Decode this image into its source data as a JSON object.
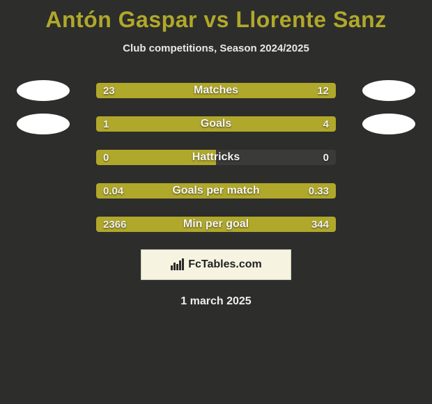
{
  "title": "Antón Gaspar vs Llorente Sanz",
  "title_color": "#b0a82b",
  "subtitle": "Club competitions, Season 2024/2025",
  "brand": "FcTables.com",
  "date": "1 march 2025",
  "bar_bg": "#3a3a38",
  "left_color": "#b0a82b",
  "right_color": "#b0a82b",
  "avatar_bg": "#ffffff",
  "stats": [
    {
      "label": "Matches",
      "left_val": "23",
      "right_val": "12",
      "left_pct": 66,
      "right_pct": 34,
      "show_avatars": true
    },
    {
      "label": "Goals",
      "left_val": "1",
      "right_val": "4",
      "left_pct": 20,
      "right_pct": 80,
      "show_avatars": true
    },
    {
      "label": "Hattricks",
      "left_val": "0",
      "right_val": "0",
      "left_pct": 50,
      "right_pct": 0,
      "show_avatars": false
    },
    {
      "label": "Goals per match",
      "left_val": "0.04",
      "right_val": "0.33",
      "left_pct": 11,
      "right_pct": 89,
      "show_avatars": false
    },
    {
      "label": "Min per goal",
      "left_val": "2366",
      "right_val": "344",
      "left_pct": 87,
      "right_pct": 13,
      "show_avatars": false
    }
  ]
}
